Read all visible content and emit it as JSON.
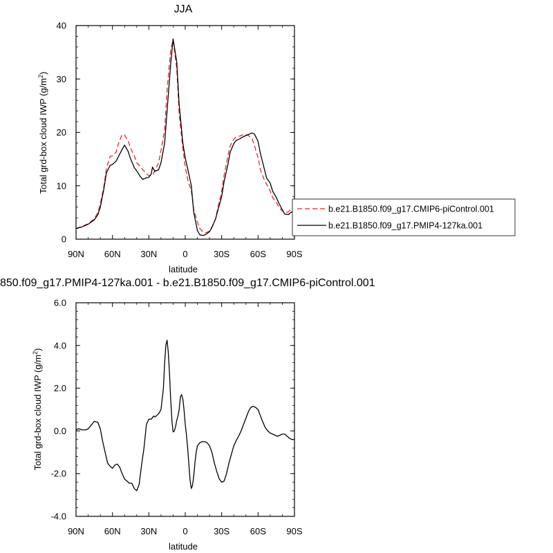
{
  "chart_data": [
    {
      "type": "line",
      "title": "JJA",
      "xlabel": "latitude",
      "ylabel": "Total grd-box cloud IWP (g/m",
      "ylabel_sup": "2",
      "ylabel_close": ")",
      "xlim": [
        90,
        -90
      ],
      "ylim": [
        0,
        40
      ],
      "xticks": [
        90,
        60,
        30,
        0,
        -30,
        -60,
        -90
      ],
      "xticklabels": [
        "90N",
        "60N",
        "30N",
        "0",
        "30S",
        "60S",
        "90S"
      ],
      "yticks": [
        0,
        10,
        20,
        30,
        40
      ],
      "yticklabels": [
        "0",
        "10",
        "20",
        "30",
        "40"
      ],
      "legend_position": "right",
      "series": [
        {
          "name": "b.e21.B1850.f09_g17.CMIP6-piControl.001",
          "color": "#e8222a",
          "dash": "dashed",
          "x": [
            90,
            85,
            80,
            75,
            72,
            70,
            67,
            65,
            62,
            60,
            57,
            55,
            52,
            50,
            47,
            45,
            42,
            40,
            37,
            35,
            32,
            30,
            27,
            25,
            22,
            20,
            17,
            15,
            12,
            10,
            7,
            5,
            2,
            0,
            -2,
            -5,
            -7,
            -10,
            -12,
            -15,
            -17,
            -20,
            -22,
            -25,
            -27,
            -30,
            -32,
            -35,
            -37,
            -40,
            -42,
            -45,
            -47,
            -50,
            -52,
            -55,
            -57,
            -60,
            -62,
            -65,
            -67,
            -70,
            -72,
            -75,
            -77,
            -80,
            -82,
            -85,
            -87,
            -90
          ],
          "y": [
            2.0,
            2.4,
            2.9,
            3.8,
            5.0,
            6.6,
            10.0,
            13.2,
            15.5,
            15.6,
            16.3,
            17.9,
            19.6,
            19.5,
            18.4,
            17.0,
            15.6,
            14.3,
            13.6,
            13.0,
            12.3,
            11.9,
            12.0,
            12.8,
            14.3,
            16.6,
            20.5,
            28.0,
            35.4,
            37.3,
            32.0,
            23.5,
            17.0,
            13.5,
            11.2,
            9.0,
            5.5,
            3.2,
            2.0,
            1.3,
            1.2,
            1.5,
            2.3,
            3.8,
            6.0,
            9.0,
            12.0,
            15.3,
            17.5,
            18.7,
            19.2,
            19.3,
            19.5,
            19.6,
            19.4,
            18.9,
            17.5,
            15.3,
            13.0,
            11.2,
            10.3,
            9.0,
            7.8,
            6.9,
            6.0,
            5.3,
            5.0,
            5.1,
            5.6,
            5.8
          ]
        },
        {
          "name": "b.e21.B1850.f09_g17.PMIP4-127ka.001",
          "color": "#000000",
          "dash": "solid",
          "x": [
            90,
            85,
            80,
            75,
            72,
            70,
            67,
            65,
            62,
            60,
            57,
            55,
            52,
            50,
            47,
            45,
            42,
            40,
            37,
            35,
            32,
            30,
            28,
            27,
            25,
            22,
            20,
            17,
            15,
            12,
            10,
            7,
            5,
            2,
            0,
            -2,
            -5,
            -7,
            -10,
            -12,
            -15,
            -17,
            -20,
            -22,
            -25,
            -27,
            -30,
            -32,
            -35,
            -37,
            -40,
            -42,
            -45,
            -47,
            -50,
            -52,
            -55,
            -57,
            -60,
            -62,
            -65,
            -67,
            -70,
            -72,
            -75,
            -77,
            -80,
            -82,
            -85,
            -87,
            -90
          ],
          "y": [
            2.0,
            2.3,
            2.8,
            3.6,
            4.6,
            6.0,
            9.5,
            12.4,
            13.8,
            14.0,
            14.6,
            15.5,
            16.8,
            17.6,
            16.4,
            15.0,
            13.4,
            12.8,
            11.7,
            11.2,
            11.5,
            11.6,
            12.2,
            13.5,
            12.7,
            13.0,
            14.3,
            18.0,
            24.0,
            32.8,
            37.5,
            33.2,
            25.2,
            18.0,
            15.2,
            13.2,
            10.0,
            5.0,
            1.6,
            0.8,
            0.7,
            0.9,
            1.4,
            2.2,
            3.8,
            5.5,
            8.0,
            10.8,
            13.8,
            16.3,
            17.9,
            18.5,
            18.8,
            19.1,
            19.4,
            19.6,
            19.9,
            19.7,
            18.3,
            16.0,
            13.3,
            11.5,
            10.5,
            9.0,
            7.8,
            6.8,
            5.5,
            4.7,
            4.6,
            5.0,
            5.3
          ]
        }
      ]
    },
    {
      "type": "line",
      "title": "850.f09_g17.PMIP4-127ka.001 - b.e21.B1850.f09_g17.CMIP6-piControl.001",
      "xlabel": "latitude",
      "ylabel": "Total grd-box cloud IWP (g/m",
      "ylabel_sup": "2",
      "ylabel_close": ")",
      "xlim": [
        90,
        -90
      ],
      "ylim": [
        -4,
        6
      ],
      "xticks": [
        90,
        60,
        30,
        0,
        -30,
        -60,
        -90
      ],
      "xticklabels": [
        "90N",
        "60N",
        "30N",
        "0",
        "30S",
        "60S",
        "90S"
      ],
      "yticks": [
        -4,
        -2,
        0,
        2,
        4,
        6
      ],
      "yticklabels": [
        "-4.0",
        "-2.0",
        "0.0",
        "2.0",
        "4.0",
        "6.0"
      ],
      "series": [
        {
          "color": "#000000",
          "dash": "solid",
          "x": [
            90,
            88,
            85,
            82,
            80,
            77,
            75,
            72,
            70,
            68,
            66,
            64,
            62,
            60,
            58,
            56,
            54,
            52,
            50,
            48,
            46,
            44,
            42,
            40,
            38,
            36,
            34,
            32,
            30,
            28,
            26,
            25,
            24,
            22,
            20,
            18,
            17,
            16,
            15,
            14,
            13,
            12,
            11,
            10,
            9,
            8,
            7,
            6,
            5,
            4,
            3,
            2,
            1,
            0,
            -1,
            -2,
            -3,
            -4,
            -5,
            -6,
            -7,
            -8,
            -9,
            -10,
            -12,
            -14,
            -16,
            -18,
            -20,
            -22,
            -24,
            -26,
            -28,
            -30,
            -32,
            -34,
            -36,
            -38,
            -40,
            -42,
            -44,
            -46,
            -48,
            -50,
            -52,
            -54,
            -56,
            -58,
            -60,
            -62,
            -64,
            -66,
            -68,
            -70,
            -72,
            -74,
            -76,
            -78,
            -80,
            -82,
            -84,
            -86,
            -88,
            -90
          ],
          "y": [
            0.05,
            0.1,
            0.05,
            0.05,
            0.1,
            0.3,
            0.45,
            0.4,
            0.1,
            -0.5,
            -1.0,
            -1.5,
            -1.65,
            -1.75,
            -1.6,
            -1.55,
            -1.7,
            -2.0,
            -2.25,
            -2.35,
            -2.45,
            -2.45,
            -2.7,
            -2.8,
            -2.5,
            -1.6,
            -0.8,
            0.3,
            0.55,
            0.55,
            0.7,
            0.65,
            0.7,
            0.8,
            1.0,
            2.0,
            3.2,
            4.0,
            4.25,
            3.7,
            2.7,
            1.5,
            0.5,
            -0.05,
            0.0,
            0.2,
            0.5,
            0.7,
            1.0,
            1.6,
            1.7,
            1.5,
            1.0,
            0.3,
            -0.2,
            -0.8,
            -1.6,
            -2.3,
            -2.7,
            -2.55,
            -2.1,
            -1.5,
            -1.0,
            -0.7,
            -0.55,
            -0.5,
            -0.5,
            -0.55,
            -0.7,
            -1.0,
            -1.5,
            -1.9,
            -2.25,
            -2.4,
            -2.35,
            -2.0,
            -1.5,
            -1.1,
            -0.7,
            -0.45,
            -0.25,
            0.0,
            0.3,
            0.6,
            0.9,
            1.1,
            1.15,
            1.1,
            1.0,
            0.7,
            0.4,
            0.15,
            0.0,
            -0.1,
            -0.15,
            -0.2,
            -0.25,
            -0.2,
            -0.15,
            -0.15,
            -0.25,
            -0.35,
            -0.4,
            -0.4
          ]
        }
      ]
    }
  ]
}
